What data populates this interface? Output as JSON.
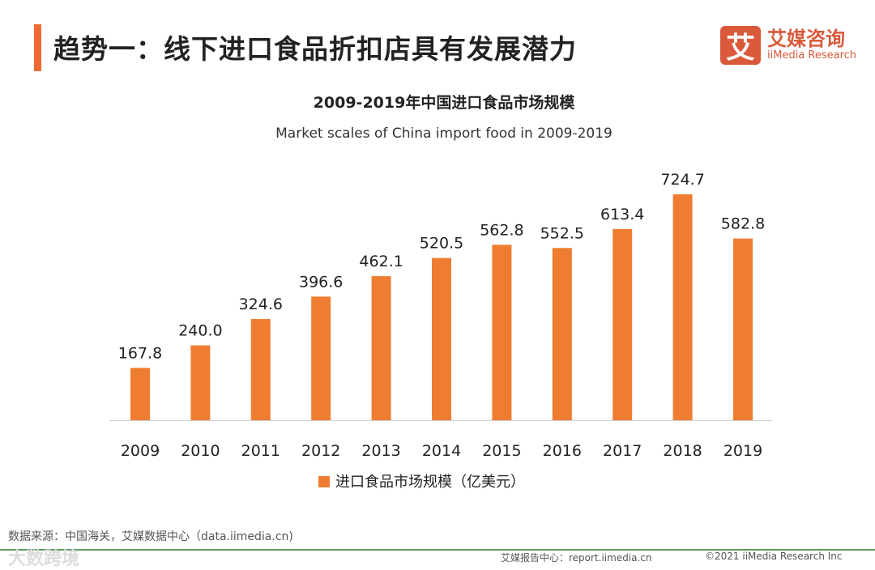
{
  "header": {
    "title": "趋势一：线下进口食品折扣店具有发展潜力"
  },
  "logo": {
    "mark": "艾",
    "cn": "艾媒咨询",
    "en": "iiMedia Research"
  },
  "chart_data": {
    "type": "bar",
    "title": "2009-2019年中国进口食品市场规模",
    "subtitle": "Market scales of China import food in 2009-2019",
    "categories": [
      "2009",
      "2010",
      "2011",
      "2012",
      "2013",
      "2014",
      "2015",
      "2016",
      "2017",
      "2018",
      "2019"
    ],
    "values": [
      167.8,
      240.0,
      324.6,
      396.6,
      462.1,
      520.5,
      562.8,
      552.5,
      613.4,
      724.7,
      582.8
    ],
    "value_labels": [
      "167.8",
      "240.0",
      "324.6",
      "396.6",
      "462.1",
      "520.5",
      "562.8",
      "552.5",
      "613.4",
      "724.7",
      "582.8"
    ],
    "legend": "进口食品市场规模（亿美元）",
    "legend_position": "bottom",
    "ylim": [
      0,
      800
    ],
    "grid": false,
    "color": "#ee7d31"
  },
  "footer": {
    "source": "数据来源：中国海关，艾媒数据中心（data.iimedia.cn)",
    "report": "艾媒报告中心：report.iimedia.cn",
    "copyright": "©2021  iiMedia Research  Inc",
    "watermark": "大数跨境"
  }
}
